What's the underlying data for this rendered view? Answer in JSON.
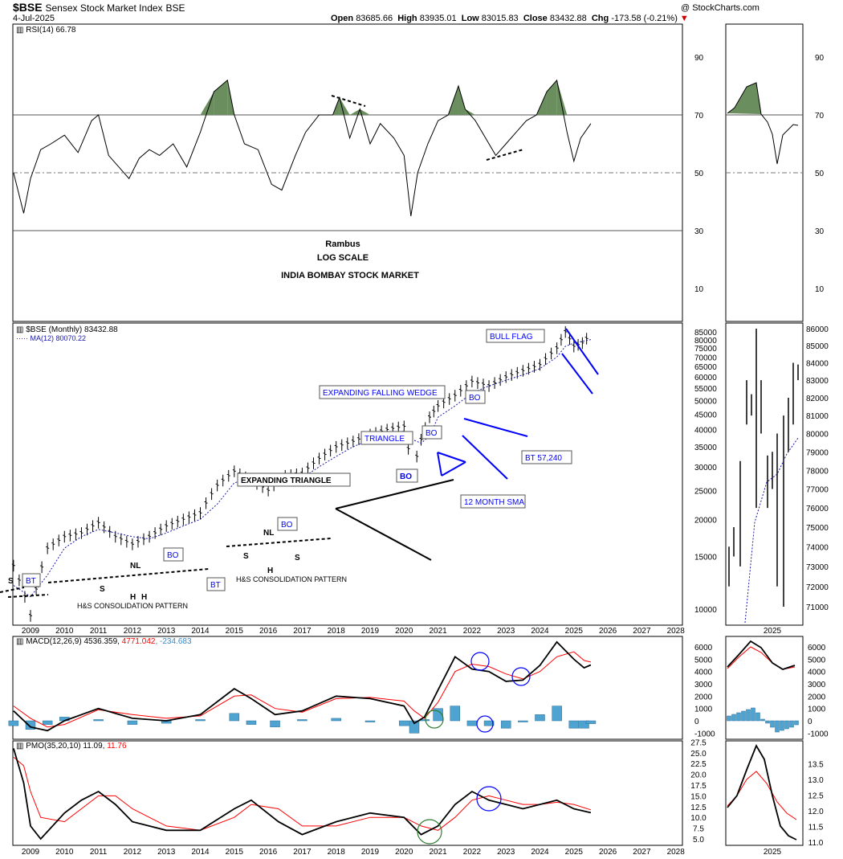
{
  "header": {
    "symbol": "$BSE",
    "name": "Sensex Stock Market Index",
    "exchange": "BSE",
    "date": "4-Jul-2025",
    "credit": "@ StockCharts.com",
    "open_label": "Open",
    "open": "83685.66",
    "high_label": "High",
    "high": "83935.01",
    "low_label": "Low",
    "low": "83015.83",
    "close_label": "Close",
    "close": "83432.88",
    "chg_label": "Chg",
    "chg": "-173.58 (-0.21%)"
  },
  "colors": {
    "rsi_fill": "#6b8e5e",
    "blue_annotation": "#0000ff",
    "macd_signal": "#ff0000",
    "histogram": "#4fa3d1",
    "ma_line": "#1a1aa6",
    "circle_green": "#2e7d32",
    "circle_blue": "#0000ff"
  },
  "notes": {
    "author": "Rambus",
    "scale": "LOG SCALE",
    "market": "INDIA BOMBAY STOCK MARKET"
  },
  "chart_data": [
    {
      "type": "line",
      "panel": "rsi",
      "legend": "RSI(14) 66.78",
      "ylim": [
        0,
        100
      ],
      "y_ticks": [
        10,
        30,
        50,
        70,
        90
      ],
      "x": [
        2008.5,
        2008.8,
        2009.0,
        2009.3,
        2009.6,
        2010.0,
        2010.4,
        2010.8,
        2011.0,
        2011.3,
        2011.6,
        2011.9,
        2012.2,
        2012.5,
        2012.8,
        2013.2,
        2013.6,
        2014.0,
        2014.4,
        2014.8,
        2015.0,
        2015.3,
        2015.7,
        2016.1,
        2016.4,
        2016.8,
        2017.1,
        2017.5,
        2017.9,
        2018.1,
        2018.4,
        2018.7,
        2019.0,
        2019.3,
        2019.7,
        2020.0,
        2020.2,
        2020.4,
        2020.7,
        2021.0,
        2021.3,
        2021.6,
        2021.8,
        2022.1,
        2022.4,
        2022.7,
        2023.0,
        2023.3,
        2023.6,
        2023.9,
        2024.2,
        2024.5,
        2024.8,
        2025.0,
        2025.2,
        2025.5
      ],
      "values": [
        50,
        36,
        48,
        58,
        60,
        63,
        57,
        68,
        70,
        56,
        52,
        48,
        55,
        58,
        56,
        60,
        52,
        64,
        78,
        82,
        70,
        60,
        58,
        46,
        44,
        56,
        64,
        70,
        70,
        76,
        62,
        72,
        60,
        67,
        62,
        56,
        35,
        50,
        60,
        68,
        70,
        80,
        72,
        68,
        62,
        56,
        60,
        64,
        68,
        70,
        78,
        82,
        64,
        54,
        62,
        67
      ],
      "reference_lines": [
        70,
        50,
        30
      ]
    },
    {
      "type": "candlestick",
      "panel": "price",
      "legend": [
        "$BSE (Monthly) 83432.88",
        "MA(12) 80070.22"
      ],
      "y_scale": "log",
      "y_ticks": [
        10000,
        15000,
        20000,
        25000,
        30000,
        35000,
        40000,
        45000,
        50000,
        55000,
        60000,
        65000,
        70000,
        75000,
        80000,
        85000
      ],
      "x_ticks": [
        "2009",
        "2010",
        "2011",
        "2012",
        "2013",
        "2014",
        "2015",
        "2016",
        "2017",
        "2018",
        "2019",
        "2020",
        "2021",
        "2022",
        "2023",
        "2024",
        "2025",
        "2026",
        "2027",
        "2028"
      ],
      "x": [
        2008.5,
        2009.0,
        2009.5,
        2010.0,
        2010.5,
        2011.0,
        2011.5,
        2012.0,
        2012.5,
        2013.0,
        2013.5,
        2014.0,
        2014.5,
        2015.0,
        2015.5,
        2016.0,
        2016.5,
        2017.0,
        2017.5,
        2018.0,
        2018.5,
        2019.0,
        2019.5,
        2020.0,
        2020.25,
        2020.5,
        2020.75,
        2021.0,
        2021.5,
        2022.0,
        2022.5,
        2023.0,
        2023.5,
        2024.0,
        2024.5,
        2024.75,
        2025.0,
        2025.25,
        2025.5
      ],
      "close": [
        14000,
        9500,
        16000,
        17500,
        18000,
        19500,
        17500,
        16500,
        17500,
        19000,
        20000,
        21000,
        26000,
        29000,
        27000,
        25000,
        28000,
        28500,
        32000,
        35000,
        36500,
        38500,
        40000,
        41000,
        28000,
        37000,
        44000,
        48000,
        52000,
        58000,
        56000,
        60000,
        63000,
        66000,
        75000,
        85000,
        76000,
        78000,
        83433
      ],
      "ma12": [
        12000,
        11000,
        13000,
        16000,
        17500,
        18500,
        18000,
        17500,
        17200,
        18000,
        19000,
        20000,
        22500,
        26500,
        27500,
        26500,
        26500,
        27500,
        30000,
        32500,
        35000,
        37000,
        38500,
        39500,
        37000,
        36000,
        38000,
        44000,
        48000,
        53000,
        56000,
        58500,
        61000,
        64000,
        70000,
        76000,
        78000,
        79000,
        80070
      ],
      "annotations": [
        "BT",
        "S",
        "NL",
        "H",
        "H",
        "S",
        "H&S CONSOLIDATION PATTERN",
        "BO",
        "BT",
        "NL",
        "S",
        "H",
        "S",
        "BO",
        "H&S CONSOLIDATION PATTERN",
        "EXPANDING TRIANGLE",
        "BO",
        "12 MONTH SMA",
        "TRIANGLE",
        "BO",
        "EXPANDING FALLING WEDGE",
        "BO",
        "BT 57,240",
        "BULL FLAG"
      ]
    },
    {
      "type": "line",
      "panel": "macd",
      "legend": [
        "MACD(12,26,9)",
        "4536.359",
        "4771.042",
        "-234.683"
      ],
      "y_ticks": [
        -1000,
        0,
        1000,
        2000,
        3000,
        4000,
        5000,
        6000
      ],
      "x": [
        2008.5,
        2009.0,
        2009.5,
        2010.0,
        2011.0,
        2012.0,
        2013.0,
        2014.0,
        2015.0,
        2015.5,
        2016.2,
        2017.0,
        2018.0,
        2019.0,
        2020.0,
        2020.3,
        2020.6,
        2021.0,
        2021.5,
        2022.0,
        2022.5,
        2023.0,
        2023.5,
        2024.0,
        2024.5,
        2025.0,
        2025.3,
        2025.5
      ],
      "macd": [
        800,
        -500,
        -800,
        0,
        1000,
        200,
        0,
        500,
        2600,
        1800,
        500,
        800,
        2000,
        1800,
        1200,
        -200,
        300,
        2500,
        5200,
        4200,
        4000,
        3200,
        3300,
        4500,
        6400,
        5000,
        4300,
        4536
      ],
      "signal": [
        1200,
        200,
        -500,
        -300,
        900,
        500,
        200,
        400,
        2000,
        2100,
        1000,
        700,
        1800,
        1900,
        1600,
        800,
        200,
        1500,
        4000,
        4600,
        4400,
        3800,
        3400,
        4000,
        5200,
        5600,
        4900,
        4771
      ],
      "histogram": [
        -400,
        -700,
        -300,
        300,
        100,
        -300,
        -200,
        100,
        600,
        -300,
        -500,
        100,
        200,
        -100,
        -400,
        -1000,
        100,
        1000,
        1200,
        -400,
        -400,
        -600,
        -100,
        500,
        1200,
        -600,
        -600,
        -235
      ]
    },
    {
      "type": "line",
      "panel": "pmo",
      "legend": [
        "PMO(35,20,10)",
        "11.09",
        "11.76"
      ],
      "y_ticks": [
        5.0,
        7.5,
        10.0,
        12.5,
        15.0,
        17.5,
        20.0,
        22.5,
        25.0,
        27.5
      ],
      "x": [
        2008.5,
        2008.8,
        2009.0,
        2009.3,
        2010.0,
        2010.5,
        2011.0,
        2011.5,
        2012.0,
        2013.0,
        2014.0,
        2015.0,
        2015.5,
        2016.3,
        2017.0,
        2018.0,
        2019.0,
        2020.0,
        2020.5,
        2021.0,
        2021.5,
        2022.0,
        2022.5,
        2023.0,
        2023.5,
        2024.0,
        2024.5,
        2025.0,
        2025.5
      ],
      "pmo": [
        26,
        18,
        8,
        5,
        11,
        14,
        16,
        13,
        9,
        7,
        7,
        12,
        14,
        9,
        6,
        9,
        11,
        10,
        6,
        8,
        13,
        16,
        14,
        13,
        12,
        13,
        14,
        12,
        11.09
      ],
      "signal": [
        24,
        22,
        16,
        10,
        9,
        12,
        15,
        15,
        12,
        8,
        7,
        10,
        13,
        12,
        8,
        8,
        10,
        10,
        8,
        7,
        10,
        14,
        15,
        14,
        13,
        13,
        13.5,
        13,
        11.76
      ]
    }
  ],
  "zoom": {
    "x_tick": "2025",
    "rsi_ticks": [
      90,
      70,
      50,
      30,
      10
    ],
    "price_ticks": [
      86000,
      85000,
      84000,
      83000,
      82000,
      81000,
      80000,
      79000,
      78000,
      77000,
      76000,
      75000,
      74000,
      73000,
      72000,
      71000
    ],
    "macd_ticks": [
      6000,
      5000,
      4000,
      3000,
      2000,
      1000,
      0,
      -1000
    ],
    "pmo_ticks": [
      13.5,
      13.0,
      12.5,
      12.0,
      11.5,
      11.0
    ]
  }
}
